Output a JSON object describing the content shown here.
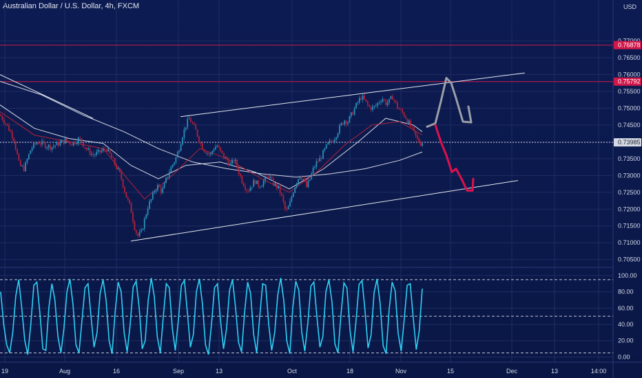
{
  "header": {
    "title": "Australian Dollar / U.S. Dollar, 4h, FXCM",
    "currency": "USD"
  },
  "colors": {
    "background": "#0c1a4f",
    "grid": "#1f2c63",
    "candle_up": "#2a8fb9",
    "candle_down": "#b3203a",
    "ma_white": "#d8dbe6",
    "ma_red": "#b62337",
    "resistance": "#d1184a",
    "projection_gray": "#9b9fa8",
    "projection_red": "#e0104f",
    "oscillator": "#2ed2f5"
  },
  "chart_data": [
    {
      "type": "candlestick",
      "x_axis_labels": [
        "19",
        "Aug",
        "16",
        "Sep",
        "13",
        "Oct",
        "18",
        "Nov",
        "15",
        "Dec",
        "13",
        "14:00"
      ],
      "y_axis_labels": [
        "0.77000",
        "0.76500",
        "0.76000",
        "0.75500",
        "0.75000",
        "0.74500",
        "0.74000",
        "0.73500",
        "0.73000",
        "0.72500",
        "0.72000",
        "0.71500",
        "0.71000",
        "0.70500"
      ],
      "ylim": [
        0.7035,
        0.7785
      ],
      "price_tags": [
        {
          "value": 0.76878,
          "label": "0.76878",
          "style": "resistance"
        },
        {
          "value": 0.75792,
          "label": "0.75792",
          "style": "resistance"
        },
        {
          "value": 0.73985,
          "label": "0.73985",
          "style": "last"
        }
      ],
      "close_path": [
        [
          0,
          0.748
        ],
        [
          10,
          0.745
        ],
        [
          20,
          0.741
        ],
        [
          28,
          0.733
        ],
        [
          35,
          0.732
        ],
        [
          45,
          0.738
        ],
        [
          55,
          0.74
        ],
        [
          65,
          0.739
        ],
        [
          75,
          0.7385
        ],
        [
          85,
          0.7395
        ],
        [
          95,
          0.7405
        ],
        [
          105,
          0.7395
        ],
        [
          115,
          0.741
        ],
        [
          125,
          0.738
        ],
        [
          135,
          0.736
        ],
        [
          145,
          0.737
        ],
        [
          155,
          0.738
        ],
        [
          165,
          0.734
        ],
        [
          175,
          0.73
        ],
        [
          183,
          0.724
        ],
        [
          190,
          0.72
        ],
        [
          196,
          0.714
        ],
        [
          200,
          0.712
        ],
        [
          205,
          0.713
        ],
        [
          210,
          0.717
        ],
        [
          215,
          0.721
        ],
        [
          220,
          0.723
        ],
        [
          225,
          0.726
        ],
        [
          230,
          0.727
        ],
        [
          235,
          0.725
        ],
        [
          240,
          0.728
        ],
        [
          245,
          0.731
        ],
        [
          250,
          0.733
        ],
        [
          255,
          0.735
        ],
        [
          260,
          0.738
        ],
        [
          265,
          0.742
        ],
        [
          270,
          0.745
        ],
        [
          275,
          0.747
        ],
        [
          280,
          0.745
        ],
        [
          285,
          0.743
        ],
        [
          290,
          0.74
        ],
        [
          295,
          0.738
        ],
        [
          300,
          0.737
        ],
        [
          305,
          0.736
        ],
        [
          310,
          0.738
        ],
        [
          315,
          0.739
        ],
        [
          320,
          0.737
        ],
        [
          325,
          0.7355
        ],
        [
          330,
          0.7345
        ],
        [
          335,
          0.733
        ],
        [
          340,
          0.735
        ],
        [
          345,
          0.732
        ],
        [
          350,
          0.729
        ],
        [
          355,
          0.727
        ],
        [
          360,
          0.7255
        ],
        [
          365,
          0.727
        ],
        [
          370,
          0.7285
        ],
        [
          375,
          0.727
        ],
        [
          380,
          0.7275
        ],
        [
          385,
          0.729
        ],
        [
          390,
          0.73
        ],
        [
          395,
          0.728
        ],
        [
          400,
          0.727
        ],
        [
          405,
          0.726
        ],
        [
          410,
          0.723
        ],
        [
          415,
          0.719
        ],
        [
          420,
          0.721
        ],
        [
          425,
          0.725
        ],
        [
          430,
          0.728
        ],
        [
          435,
          0.73
        ],
        [
          440,
          0.729
        ],
        [
          445,
          0.7265
        ],
        [
          450,
          0.729
        ],
        [
          455,
          0.732
        ],
        [
          460,
          0.734
        ],
        [
          465,
          0.735
        ],
        [
          470,
          0.737
        ],
        [
          475,
          0.739
        ],
        [
          480,
          0.74
        ],
        [
          485,
          0.741
        ],
        [
          490,
          0.743
        ],
        [
          495,
          0.745
        ],
        [
          500,
          0.7465
        ],
        [
          505,
          0.746
        ],
        [
          510,
          0.748
        ],
        [
          515,
          0.75
        ],
        [
          520,
          0.752
        ],
        [
          525,
          0.7535
        ],
        [
          530,
          0.752
        ],
        [
          535,
          0.7505
        ],
        [
          540,
          0.75
        ],
        [
          545,
          0.7505
        ],
        [
          550,
          0.752
        ],
        [
          555,
          0.753
        ],
        [
          560,
          0.7515
        ],
        [
          565,
          0.752
        ],
        [
          570,
          0.7535
        ],
        [
          575,
          0.751
        ],
        [
          580,
          0.7495
        ],
        [
          585,
          0.7485
        ],
        [
          590,
          0.747
        ],
        [
          595,
          0.745
        ],
        [
          600,
          0.743
        ],
        [
          605,
          0.741
        ],
        [
          610,
          0.7395
        ],
        [
          613,
          0.7398
        ]
      ],
      "moving_averages": [
        {
          "color_key": "ma_white",
          "points": [
            [
              0,
              0.758
            ],
            [
              60,
              0.754
            ],
            [
              120,
              0.748
            ],
            [
              180,
              0.743
            ],
            [
              230,
              0.738
            ],
            [
              280,
              0.734
            ],
            [
              330,
              0.732
            ],
            [
              380,
              0.7305
            ],
            [
              430,
              0.7295
            ],
            [
              480,
              0.7305
            ],
            [
              530,
              0.732
            ],
            [
              580,
              0.7345
            ],
            [
              613,
              0.737
            ]
          ]
        },
        {
          "color_key": "ma_white",
          "points": [
            [
              0,
              0.751
            ],
            [
              50,
              0.744
            ],
            [
              100,
              0.741
            ],
            [
              150,
              0.7395
            ],
            [
              190,
              0.733
            ],
            [
              230,
              0.729
            ],
            [
              270,
              0.733
            ],
            [
              320,
              0.734
            ],
            [
              370,
              0.731
            ],
            [
              420,
              0.726
            ],
            [
              470,
              0.732
            ],
            [
              520,
              0.74
            ],
            [
              560,
              0.747
            ],
            [
              600,
              0.745
            ],
            [
              613,
              0.743
            ]
          ]
        },
        {
          "color_key": "ma_red",
          "points": [
            [
              0,
              0.749
            ],
            [
              50,
              0.742
            ],
            [
              100,
              0.74
            ],
            [
              150,
              0.738
            ],
            [
              185,
              0.729
            ],
            [
              210,
              0.723
            ],
            [
              250,
              0.73
            ],
            [
              290,
              0.738
            ],
            [
              330,
              0.735
            ],
            [
              380,
              0.729
            ],
            [
              420,
              0.725
            ],
            [
              460,
              0.731
            ],
            [
              500,
              0.739
            ],
            [
              540,
              0.745
            ],
            [
              580,
              0.746
            ],
            [
              613,
              0.742
            ]
          ]
        }
      ],
      "trendlines": [
        {
          "kind": "upper_channel",
          "from": [
            262,
            0.7475
          ],
          "to": [
            762,
            0.7605
          ]
        },
        {
          "kind": "lower_channel",
          "from": [
            190,
            0.7105
          ],
          "to": [
            752,
            0.7285
          ]
        },
        {
          "kind": "descending",
          "from": [
            0,
            0.76
          ],
          "to": [
            135,
            0.747
          ]
        }
      ],
      "projections": [
        {
          "color_key": "projection_gray",
          "points": [
            [
              620,
              0.7445
            ],
            [
              632,
              0.7455
            ],
            [
              640,
              0.752
            ],
            [
              648,
              0.759
            ],
            [
              655,
              0.7575
            ],
            [
              662,
              0.753
            ],
            [
              672,
              0.746
            ],
            [
              684,
              0.7458
            ]
          ],
          "arrow_to": [
            680,
            0.7505
          ]
        },
        {
          "color_key": "projection_red",
          "points": [
            [
              632,
              0.745
            ],
            [
              640,
              0.74
            ],
            [
              648,
              0.736
            ],
            [
              656,
              0.731
            ],
            [
              662,
              0.732
            ],
            [
              670,
              0.729
            ],
            [
              678,
              0.7255
            ],
            [
              686,
              0.7255
            ]
          ],
          "arrow_to": [
            687,
            0.729
          ]
        }
      ]
    },
    {
      "type": "line",
      "name_role": "oscillator",
      "y_axis_labels": [
        "100.00",
        "80.00",
        "60.00",
        "40.00",
        "20.00",
        "0.00"
      ],
      "ylim": [
        -3,
        105
      ],
      "reference_levels": [
        95,
        50,
        5
      ],
      "values": [
        80,
        40,
        15,
        5,
        30,
        75,
        95,
        60,
        20,
        3,
        40,
        88,
        92,
        55,
        10,
        8,
        60,
        90,
        70,
        25,
        5,
        35,
        80,
        96,
        65,
        15,
        5,
        45,
        85,
        90,
        50,
        12,
        30,
        78,
        95,
        70,
        20,
        4,
        55,
        92,
        80,
        30,
        6,
        40,
        86,
        93,
        60,
        10,
        20,
        70,
        97,
        75,
        25,
        5,
        50,
        90,
        85,
        35,
        8,
        45,
        88,
        94,
        55,
        12,
        28,
        80,
        96,
        65,
        15,
        3,
        40,
        85,
        90,
        45,
        10,
        35,
        82,
        95,
        60,
        18,
        6,
        55,
        92,
        78,
        28,
        5,
        48,
        90,
        88,
        40,
        8,
        30,
        76,
        97,
        70,
        20,
        4,
        60,
        93,
        82,
        30,
        7,
        42,
        87,
        92,
        50,
        12,
        25,
        80,
        95,
        68,
        16,
        5,
        52,
        91,
        85,
        33,
        6,
        44,
        89,
        94,
        57,
        11,
        27,
        79,
        96,
        66,
        14,
        4,
        58,
        92,
        81,
        29,
        7,
        46,
        88,
        90,
        48,
        9,
        32,
        84
      ]
    }
  ]
}
